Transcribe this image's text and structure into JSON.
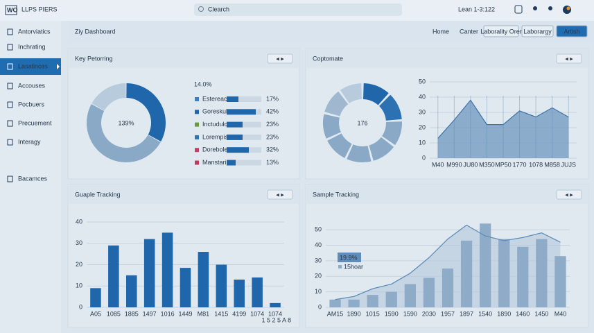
{
  "topbar": {
    "logo": "WO",
    "brand": "LLPS PIERS",
    "search": "Clearch",
    "user": "Lean 1-3:122"
  },
  "sidebar": {
    "items": [
      "Antorviatics",
      "Inchrating",
      "Lasatinces",
      "Accouses",
      "Pocbuers",
      "Precuement",
      "Interagy",
      "Bacamces"
    ]
  },
  "header": {
    "title": "Ziy Dashboard",
    "buttons": [
      "Home",
      "Canter",
      "Laborality Orer",
      "Laborargy",
      "Artish"
    ]
  },
  "chart_data": [
    {
      "type": "pie",
      "title": "Key Petorring",
      "center_label": "139%",
      "values": [
        33,
        50,
        17
      ],
      "colors": [
        "#1f66ab",
        "#8aa9c7",
        "#b8cbdc"
      ],
      "breakdown": {
        "title": "14.0%",
        "categories": [
          "Estereacts",
          "Goreskulc",
          "Inctudulc",
          "Lorempis",
          "Dorebole",
          "Manstarin"
        ],
        "values": [
          17,
          42,
          23,
          23,
          32,
          13
        ],
        "value_labels": [
          "17%",
          "42%",
          "23%",
          "23%",
          "32%",
          "13%"
        ],
        "colors": [
          "#3f7fbf",
          "#1f66ab",
          "#6a9a3a",
          "#2f74b5",
          "#c2416b",
          "#c23a5a"
        ]
      }
    },
    {
      "type": "pie",
      "title": "Coptomate",
      "center_label": "176",
      "values": [
        12,
        12,
        11,
        11,
        11,
        11,
        11,
        11,
        10
      ],
      "colors": [
        "#1f66ab",
        "#2c72b3",
        "#8aa9c7",
        "#8aa9c7",
        "#8aa9c7",
        "#8aa9c7",
        "#8aa9c7",
        "#9fb8cf",
        "#b8cbdc"
      ]
    },
    {
      "type": "area",
      "categories": [
        "M40",
        "M990",
        "JU80",
        "M350",
        "MP50",
        "1770",
        "1078",
        "M858",
        "JUJS"
      ],
      "values": [
        13,
        25,
        38,
        22,
        22,
        31,
        27,
        33,
        27
      ],
      "color": "#6f97bf",
      "ylim": [
        0,
        50
      ],
      "yticks": [
        0,
        10,
        20,
        30,
        40,
        50
      ]
    },
    {
      "type": "bar",
      "title": "Guaple Tracking",
      "categories": [
        "A05",
        "1085",
        "1885",
        "1497",
        "1016",
        "1449",
        "M81",
        "1415",
        "4199",
        "1074",
        "1074"
      ],
      "values": [
        9,
        29,
        15,
        32,
        35,
        18.5,
        26,
        20,
        13,
        14,
        2
      ],
      "color": "#1f66ab",
      "ylim": [
        0,
        40
      ],
      "yticks": [
        0,
        10,
        20,
        30,
        40
      ],
      "footnote": "1 5 2 5 A 8"
    },
    {
      "type": "combo",
      "title": "Sample Tracking",
      "categories": [
        "AM15",
        "1890",
        "1015",
        "1590",
        "1590",
        "2030",
        "1957",
        "1897",
        "1540",
        "1890",
        "1460",
        "1450",
        "M40"
      ],
      "series": [
        {
          "name": "15hoar",
          "type": "bar",
          "color": "#8eabc8",
          "values": [
            5,
            5,
            8,
            10,
            15,
            19,
            25,
            43,
            54,
            44,
            39,
            44,
            33
          ]
        },
        {
          "type": "line",
          "color": "#5f8cb9",
          "values": [
            5,
            7,
            12,
            15,
            22,
            32,
            44,
            53,
            46,
            43,
            45,
            48,
            42
          ]
        }
      ],
      "annotation": "19.9%",
      "ylim": [
        0,
        55
      ],
      "yticks": [
        0,
        10,
        20,
        30,
        40,
        50
      ]
    }
  ]
}
